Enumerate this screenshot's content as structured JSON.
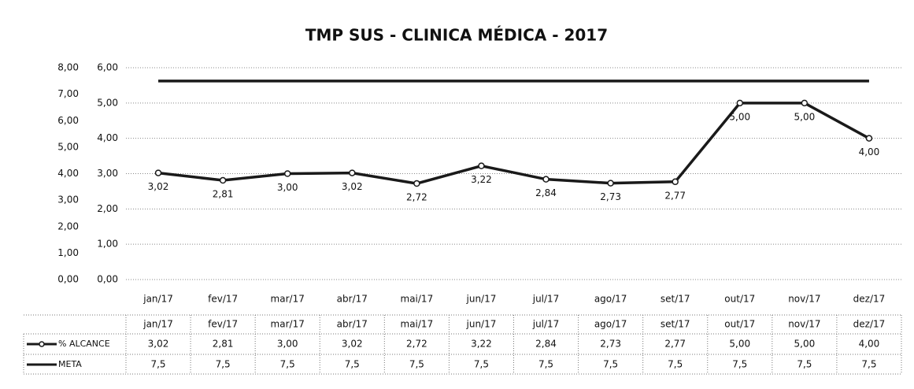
{
  "chart_data": {
    "type": "line",
    "title": "TMP SUS - CLINICA MÉDICA - 2017",
    "categories": [
      "jan/17",
      "fev/17",
      "mar/17",
      "abr/17",
      "mai/17",
      "jun/17",
      "jul/17",
      "ago/17",
      "set/17",
      "out/17",
      "nov/17",
      "dez/17"
    ],
    "series": [
      {
        "name": "% ALCANCE",
        "color": "#1a1a1a",
        "axis": "y",
        "values": [
          3.02,
          2.81,
          3.0,
          3.02,
          2.72,
          3.22,
          2.84,
          2.73,
          2.77,
          5.0,
          5.0,
          4.0
        ],
        "value_labels": [
          "3,02",
          "2,81",
          "3,00",
          "3,02",
          "2,72",
          "3,22",
          "2,84",
          "2,73",
          "2,77",
          "5,00",
          "5,00",
          "4,00"
        ]
      },
      {
        "name": "META",
        "color": "#1a1a1a",
        "axis": "y2",
        "values": [
          7.5,
          7.5,
          7.5,
          7.5,
          7.5,
          7.5,
          7.5,
          7.5,
          7.5,
          7.5,
          7.5,
          7.5
        ],
        "value_labels": [
          "7,5",
          "7,5",
          "7,5",
          "7,5",
          "7,5",
          "7,5",
          "7,5",
          "7,5",
          "7,5",
          "7,5",
          "7,5",
          "7,5"
        ]
      }
    ],
    "ylim": [
      0,
      6
    ],
    "yticks": [
      {
        "value": 0,
        "label": "0,00"
      },
      {
        "value": 1,
        "label": "1,00"
      },
      {
        "value": 2,
        "label": "2,00"
      },
      {
        "value": 3,
        "label": "3,00"
      },
      {
        "value": 4,
        "label": "4,00"
      },
      {
        "value": 5,
        "label": "5,00"
      },
      {
        "value": 6,
        "label": "6,00"
      }
    ],
    "y2lim": [
      0,
      8
    ],
    "y2ticks": [
      {
        "value": 0,
        "label": "0,00"
      },
      {
        "value": 1,
        "label": "1,00"
      },
      {
        "value": 2,
        "label": "2,00"
      },
      {
        "value": 3,
        "label": "3,00"
      },
      {
        "value": 4,
        "label": "4,00"
      },
      {
        "value": 5,
        "label": "5,00"
      },
      {
        "value": 6,
        "label": "6,00"
      },
      {
        "value": 7,
        "label": "7,00"
      },
      {
        "value": 8,
        "label": "8,00"
      }
    ],
    "grid": true,
    "data_table": true
  }
}
